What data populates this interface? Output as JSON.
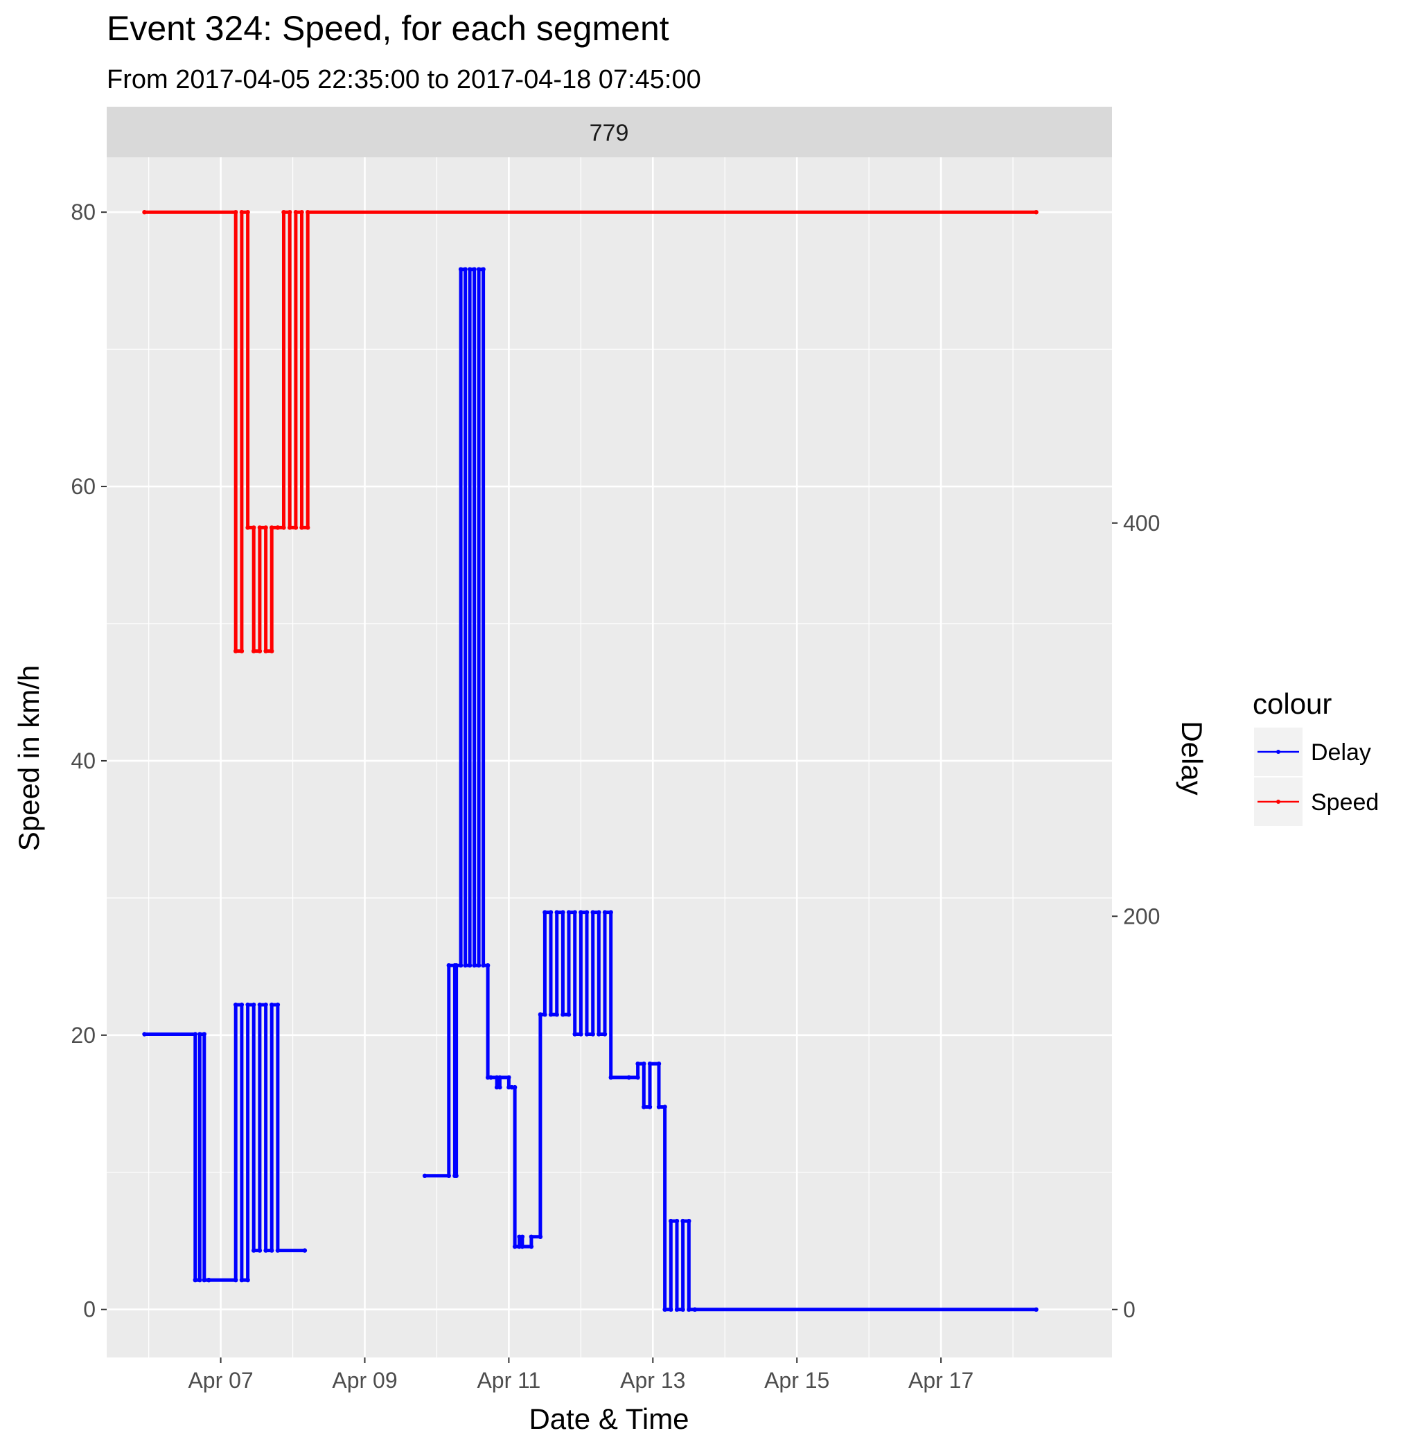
{
  "chart_data": {
    "type": "line",
    "title": "Event 324: Speed, for each segment",
    "subtitle": "From 2017-04-05 22:35:00 to 2017-04-18 07:45:00",
    "facet_label": "779",
    "xlabel": "Date & Time",
    "ylabel": "Speed in km/h",
    "y2label": "Delay",
    "xlim": [
      "2017-04-05T10:00",
      "2017-04-19T09:00"
    ],
    "ylim": [
      -3.5,
      84
    ],
    "y2lim": [
      -24.4,
      586
    ],
    "grid": true,
    "x_ticks": [
      {
        "label": "Apr 07",
        "at": "2017-04-07T00:00"
      },
      {
        "label": "Apr 09",
        "at": "2017-04-09T00:00"
      },
      {
        "label": "Apr 11",
        "at": "2017-04-11T00:00"
      },
      {
        "label": "Apr 13",
        "at": "2017-04-13T00:00"
      },
      {
        "label": "Apr 15",
        "at": "2017-04-15T00:00"
      },
      {
        "label": "Apr 17",
        "at": "2017-04-17T00:00"
      }
    ],
    "y_ticks": [
      0,
      20,
      40,
      60,
      80
    ],
    "y2_ticks": [
      0,
      200,
      400
    ],
    "legend": {
      "title": "colour",
      "position": "right",
      "entries": [
        {
          "label": "Delay",
          "color": "#0000ff"
        },
        {
          "label": "Speed",
          "color": "#ff0000"
        }
      ]
    },
    "series": [
      {
        "name": "Speed",
        "color": "#ff0000",
        "axis": "left",
        "x": [
          "2017-04-05T22:35",
          "2017-04-07T05:00",
          "2017-04-07T05:00",
          "2017-04-07T07:00",
          "2017-04-07T07:00",
          "2017-04-07T09:00",
          "2017-04-07T09:00",
          "2017-04-07T11:00",
          "2017-04-07T11:00",
          "2017-04-07T13:00",
          "2017-04-07T13:00",
          "2017-04-07T15:00",
          "2017-04-07T15:00",
          "2017-04-07T17:00",
          "2017-04-07T17:00",
          "2017-04-07T19:00",
          "2017-04-07T19:00",
          "2017-04-07T21:00",
          "2017-04-07T21:00",
          "2017-04-07T23:00",
          "2017-04-07T23:00",
          "2017-04-08T01:00",
          "2017-04-08T01:00",
          "2017-04-08T03:00",
          "2017-04-08T03:00",
          "2017-04-08T05:00",
          "2017-04-08T05:00",
          "2017-04-18T07:45"
        ],
        "values": [
          80,
          80,
          48,
          48,
          80,
          80,
          57,
          57,
          48,
          48,
          57,
          57,
          48,
          48,
          57,
          57,
          57,
          57,
          80,
          80,
          57,
          57,
          80,
          80,
          57,
          57,
          80,
          80
        ]
      },
      {
        "name": "Delay",
        "color": "#0000ff",
        "axis": "right",
        "x": [
          "2017-04-05T22:35",
          "2017-04-06T15:30",
          "2017-04-06T15:30",
          "2017-04-06T17:00",
          "2017-04-06T17:00",
          "2017-04-06T18:30",
          "2017-04-06T18:30",
          "2017-04-06T20:00",
          "2017-04-06T20:00",
          "2017-04-07T05:00",
          "2017-04-07T05:00",
          "2017-04-07T07:00",
          "2017-04-07T07:00",
          "2017-04-07T09:00",
          "2017-04-07T09:00",
          "2017-04-07T11:00",
          "2017-04-07T11:00",
          "2017-04-07T13:00",
          "2017-04-07T13:00",
          "2017-04-07T15:00",
          "2017-04-07T15:00",
          "2017-04-07T17:00",
          "2017-04-07T17:00",
          "2017-04-07T19:00",
          "2017-04-07T19:00",
          "2017-04-08T04:00"
        ],
        "values": [
          140,
          140,
          15,
          15,
          140,
          140,
          15,
          15,
          15,
          15,
          155,
          155,
          15,
          15,
          155,
          155,
          30,
          30,
          155,
          155,
          30,
          30,
          155,
          155,
          30,
          30
        ]
      },
      {
        "name": "Delay",
        "color": "#0000ff",
        "axis": "right",
        "x": [
          "2017-04-09T20:00",
          "2017-04-10T04:00",
          "2017-04-10T04:00",
          "2017-04-10T06:00",
          "2017-04-10T06:00",
          "2017-04-10T06:30",
          "2017-04-10T06:30",
          "2017-04-10T08:00",
          "2017-04-10T08:00",
          "2017-04-10T09:30",
          "2017-04-10T09:30",
          "2017-04-10T11:00",
          "2017-04-10T11:00",
          "2017-04-10T12:30",
          "2017-04-10T12:30",
          "2017-04-10T14:00",
          "2017-04-10T14:00",
          "2017-04-10T15:30",
          "2017-04-10T15:30",
          "2017-04-10T17:00",
          "2017-04-10T17:00",
          "2017-04-10T18:00",
          "2017-04-10T18:00",
          "2017-04-10T20:00",
          "2017-04-10T20:00",
          "2017-04-10T21:00",
          "2017-04-10T21:00",
          "2017-04-11T00:00",
          "2017-04-11T00:00",
          "2017-04-11T01:00",
          "2017-04-11T01:00",
          "2017-04-11T02:00",
          "2017-04-11T02:00",
          "2017-04-11T03:30",
          "2017-04-11T03:30",
          "2017-04-11T04:30",
          "2017-04-11T04:30",
          "2017-04-11T07:30",
          "2017-04-11T07:30",
          "2017-04-11T10:30",
          "2017-04-11T10:30",
          "2017-04-11T12:00",
          "2017-04-11T12:00",
          "2017-04-11T14:00",
          "2017-04-11T14:00",
          "2017-04-11T16:00",
          "2017-04-11T16:00",
          "2017-04-11T18:00",
          "2017-04-11T18:00",
          "2017-04-11T20:00",
          "2017-04-11T20:00",
          "2017-04-11T22:00",
          "2017-04-11T22:00",
          "2017-04-12T00:00",
          "2017-04-12T00:00",
          "2017-04-12T02:00",
          "2017-04-12T02:00",
          "2017-04-12T04:00",
          "2017-04-12T04:00",
          "2017-04-12T06:00",
          "2017-04-12T06:00",
          "2017-04-12T08:00",
          "2017-04-12T08:00",
          "2017-04-12T10:00",
          "2017-04-12T10:00",
          "2017-04-12T16:00",
          "2017-04-12T16:00",
          "2017-04-12T19:00",
          "2017-04-12T19:00",
          "2017-04-12T21:00",
          "2017-04-12T21:00",
          "2017-04-12T23:00",
          "2017-04-12T23:00",
          "2017-04-13T02:00",
          "2017-04-13T02:00",
          "2017-04-13T04:00",
          "2017-04-13T04:00",
          "2017-04-13T06:00",
          "2017-04-13T06:00",
          "2017-04-13T08:00",
          "2017-04-13T08:00",
          "2017-04-13T10:00",
          "2017-04-13T10:00",
          "2017-04-13T12:00",
          "2017-04-13T12:00",
          "2017-04-13T14:00",
          "2017-04-13T14:00",
          "2017-04-18T07:45"
        ],
        "values": [
          68,
          68,
          175,
          175,
          68,
          68,
          175,
          175,
          529,
          529,
          175,
          175,
          529,
          529,
          175,
          175,
          529,
          529,
          175,
          175,
          118,
          118,
          118,
          118,
          113,
          113,
          118,
          118,
          113,
          113,
          113,
          113,
          32,
          32,
          37,
          37,
          32,
          32,
          37,
          37,
          150,
          150,
          202,
          202,
          150,
          150,
          202,
          202,
          150,
          150,
          202,
          202,
          140,
          140,
          202,
          202,
          140,
          140,
          202,
          202,
          140,
          140,
          202,
          202,
          118,
          118,
          118,
          118,
          125,
          125,
          103,
          103,
          125,
          125,
          103,
          103,
          0,
          0,
          45,
          45,
          0,
          0,
          45,
          45,
          0,
          0,
          0,
          0
        ]
      }
    ]
  }
}
